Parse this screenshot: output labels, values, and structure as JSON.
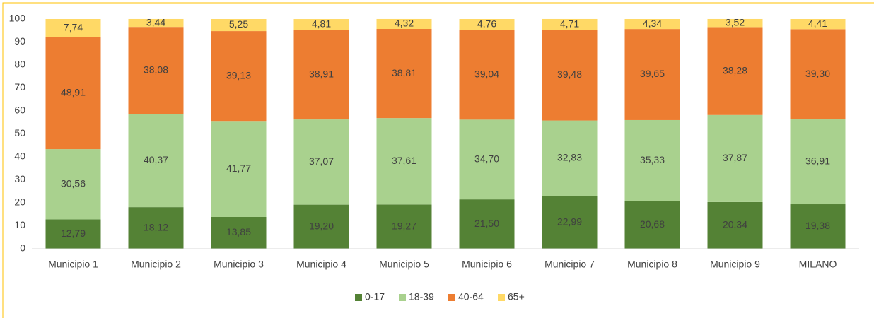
{
  "chart_data": {
    "type": "stacked_bar",
    "categories": [
      "Municipio 1",
      "Municipio 2",
      "Municipio 3",
      "Municipio 4",
      "Municipio 5",
      "Municipio 6",
      "Municipio 7",
      "Municipio 8",
      "Municipio 9",
      "MILANO"
    ],
    "series": [
      {
        "name": "0-17",
        "color": "#548235",
        "values": [
          12.79,
          18.12,
          13.85,
          19.2,
          19.27,
          21.5,
          22.99,
          20.68,
          20.34,
          19.38
        ],
        "value_labels": [
          "12,79",
          "18,12",
          "13,85",
          "19,20",
          "19,27",
          "21,50",
          "22,99",
          "20,68",
          "20,34",
          "19,38"
        ]
      },
      {
        "name": "18-39",
        "color": "#a9d18e",
        "values": [
          30.56,
          40.37,
          41.77,
          37.07,
          37.61,
          34.7,
          32.83,
          35.33,
          37.87,
          36.91
        ],
        "value_labels": [
          "30,56",
          "40,37",
          "41,77",
          "37,07",
          "37,61",
          "34,70",
          "32,83",
          "35,33",
          "37,87",
          "36,91"
        ]
      },
      {
        "name": "40-64",
        "color": "#ed7d31",
        "values": [
          48.91,
          38.08,
          39.13,
          38.91,
          38.81,
          39.04,
          39.48,
          39.65,
          38.28,
          39.3
        ],
        "value_labels": [
          "48,91",
          "38,08",
          "39,13",
          "38,91",
          "38,81",
          "39,04",
          "39,48",
          "39,65",
          "38,28",
          "39,30"
        ]
      },
      {
        "name": "65+",
        "color": "#ffd966",
        "values": [
          7.74,
          3.44,
          5.25,
          4.81,
          4.32,
          4.76,
          4.71,
          4.34,
          3.52,
          4.41
        ],
        "value_labels": [
          "7,74",
          "3,44",
          "5,25",
          "4,81",
          "4,32",
          "4,76",
          "4,71",
          "4,34",
          "3,52",
          "4,41"
        ]
      }
    ],
    "ylim": [
      0,
      100
    ],
    "yticks": [
      0,
      10,
      20,
      30,
      40,
      50,
      60,
      70,
      80,
      90,
      100
    ],
    "grid": false,
    "legend": "bottom"
  }
}
